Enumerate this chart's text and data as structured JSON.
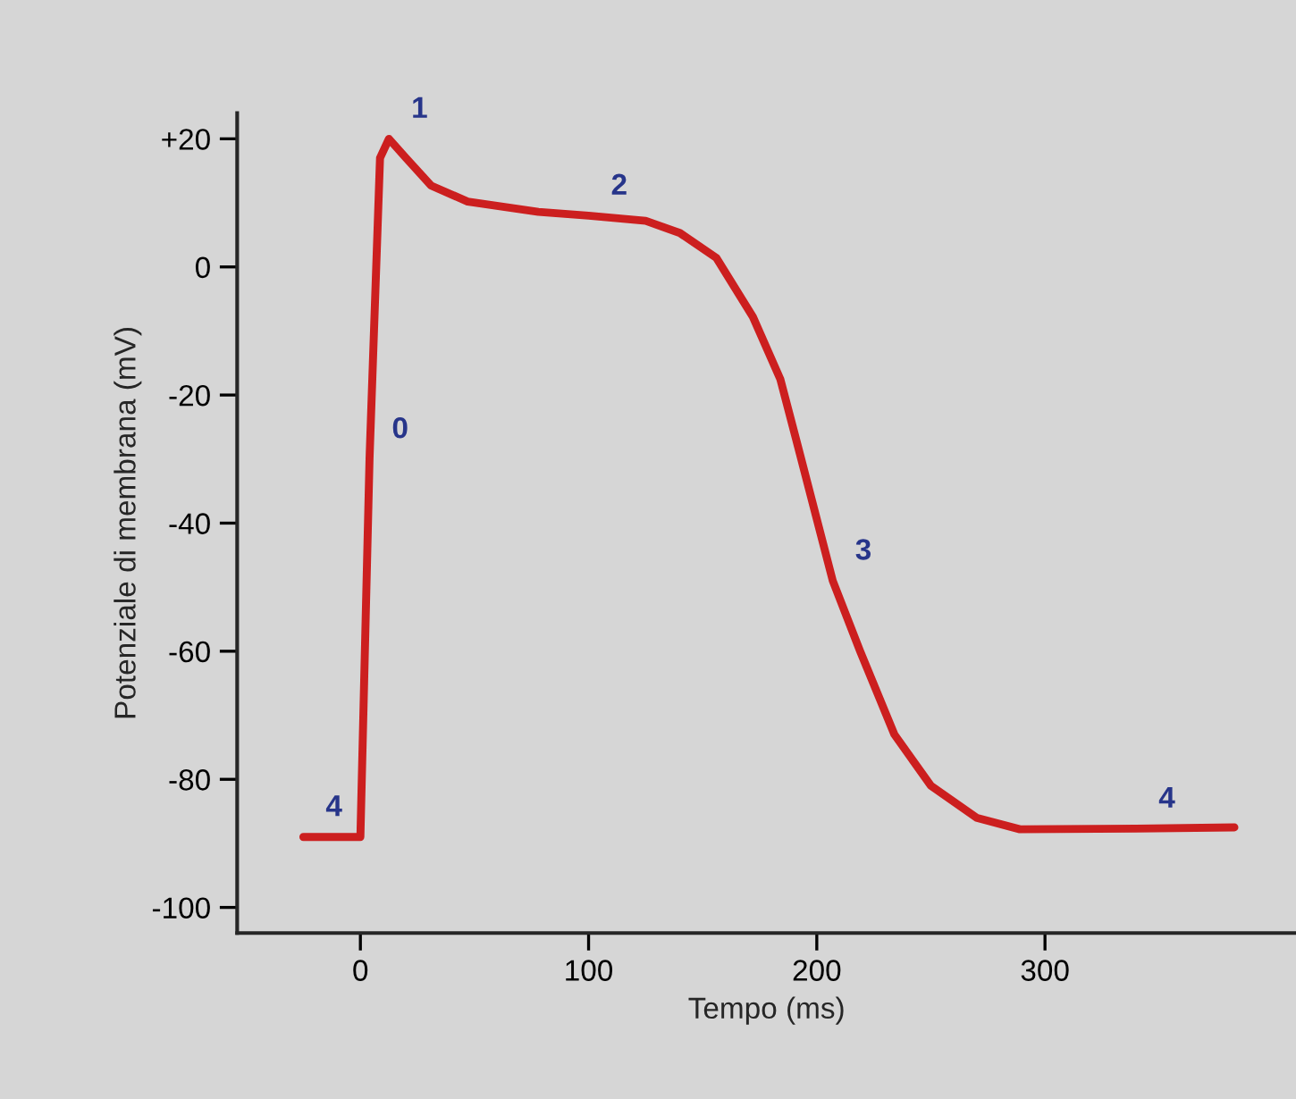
{
  "chart_data": {
    "type": "line",
    "xlabel": "Tempo (ms)",
    "ylabel": "Potenziale di membrana (mV)",
    "x": [
      -25,
      0,
      4,
      8.6,
      12.5,
      20,
      31,
      47,
      78,
      100,
      125,
      140,
      156,
      172,
      184,
      191,
      199,
      207,
      219,
      234,
      250,
      270,
      289,
      340,
      383
    ],
    "series": [
      {
        "color": "#cc1f1f",
        "values": [
          -89,
          -89,
          -30,
          17,
          20,
          17,
          12.7,
          10.2,
          8.6,
          8,
          7.2,
          5.3,
          1.4,
          -7.8,
          -17.5,
          -27,
          -38,
          -49,
          -60,
          -73,
          -81,
          -86,
          -87.8,
          -87.7,
          -87.5
        ]
      }
    ],
    "xlim": [
      -54,
      410
    ],
    "ylim": [
      -104,
      24
    ],
    "xticks": [
      0,
      100,
      200,
      300
    ],
    "yticks": [
      {
        "value": 20,
        "label": "+20"
      },
      0,
      -20,
      -40,
      -60,
      -80,
      -100
    ],
    "grid": false,
    "marker": "none",
    "line_style": "solid",
    "annotations": [
      {
        "text": "0",
        "x": 4,
        "y": -30
      },
      {
        "text": "1",
        "x": 12.5,
        "y": 20
      },
      {
        "text": "2",
        "x": 100,
        "y": 8
      },
      {
        "text": "3",
        "x": 207,
        "y": -49
      },
      {
        "text": "4",
        "x": -25,
        "y": -89
      },
      {
        "text": "4",
        "x": 340,
        "y": -87.7
      }
    ]
  }
}
